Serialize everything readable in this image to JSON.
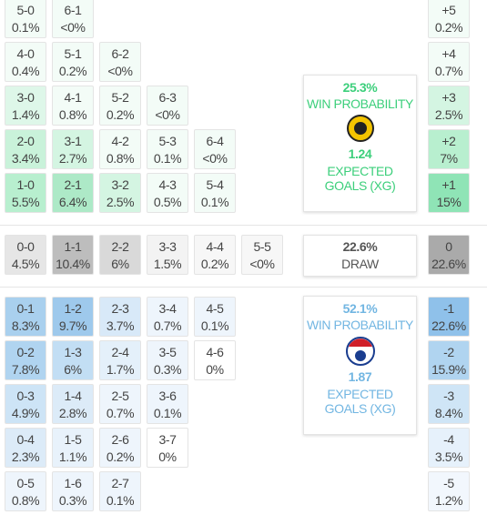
{
  "home": {
    "rows": [
      [
        {
          "score": "5-0",
          "prob": "0.1%",
          "color": "#f3fcf7"
        },
        {
          "score": "6-1",
          "prob": "<0%",
          "color": "#f3fcf7"
        }
      ],
      [
        {
          "score": "4-0",
          "prob": "0.4%",
          "color": "#f3fcf7"
        },
        {
          "score": "5-1",
          "prob": "0.2%",
          "color": "#f3fcf7"
        },
        {
          "score": "6-2",
          "prob": "<0%",
          "color": "#f3fcf7"
        }
      ],
      [
        {
          "score": "3-0",
          "prob": "1.4%",
          "color": "#def7e9"
        },
        {
          "score": "4-1",
          "prob": "0.8%",
          "color": "#f3fcf7"
        },
        {
          "score": "5-2",
          "prob": "0.2%",
          "color": "#f3fcf7"
        },
        {
          "score": "6-3",
          "prob": "<0%",
          "color": "#f3fcf7"
        }
      ],
      [
        {
          "score": "2-0",
          "prob": "3.4%",
          "color": "#c9f2da"
        },
        {
          "score": "3-1",
          "prob": "2.7%",
          "color": "#d4f5e2"
        },
        {
          "score": "4-2",
          "prob": "0.8%",
          "color": "#f3fcf7"
        },
        {
          "score": "5-3",
          "prob": "0.1%",
          "color": "#f3fcf7"
        },
        {
          "score": "6-4",
          "prob": "<0%",
          "color": "#f3fcf7"
        }
      ],
      [
        {
          "score": "1-0",
          "prob": "5.5%",
          "color": "#b8efcf"
        },
        {
          "score": "2-1",
          "prob": "6.4%",
          "color": "#ade9c7"
        },
        {
          "score": "3-2",
          "prob": "2.5%",
          "color": "#d4f5e2"
        },
        {
          "score": "4-3",
          "prob": "0.5%",
          "color": "#f3fcf7"
        },
        {
          "score": "5-4",
          "prob": "0.1%",
          "color": "#f3fcf7"
        }
      ]
    ],
    "diffs": [
      {
        "score": "+5",
        "prob": "0.2%",
        "color": "#f3fcf7"
      },
      {
        "score": "+4",
        "prob": "0.7%",
        "color": "#f3fcf7"
      },
      {
        "score": "+3",
        "prob": "2.5%",
        "color": "#d4f5e2"
      },
      {
        "score": "+2",
        "prob": "7%",
        "color": "#b8efcf"
      },
      {
        "score": "+1",
        "prob": "15%",
        "color": "#8fe4b6"
      }
    ],
    "panel": {
      "probability": "25.3%",
      "label": "WIN PROBABILITY",
      "xg": "1.24",
      "xg_label": "EXPECTED GOALS (XG)"
    }
  },
  "draw": {
    "cells": [
      {
        "score": "0-0",
        "prob": "4.5%",
        "color": "#e6e6e6"
      },
      {
        "score": "1-1",
        "prob": "10.4%",
        "color": "#bdbdbd"
      },
      {
        "score": "2-2",
        "prob": "6%",
        "color": "#d9d9d9"
      },
      {
        "score": "3-3",
        "prob": "1.5%",
        "color": "#f3f3f3"
      },
      {
        "score": "4-4",
        "prob": "0.2%",
        "color": "#f7f7f7"
      },
      {
        "score": "5-5",
        "prob": "<0%",
        "color": "#f7f7f7"
      }
    ],
    "diff": {
      "score": "0",
      "prob": "22.6%",
      "color": "#aaaaaa"
    },
    "panel": {
      "probability": "22.6%",
      "label": "DRAW"
    }
  },
  "away": {
    "rows": [
      [
        {
          "score": "0-1",
          "prob": "8.3%",
          "color": "#a9d0ee"
        },
        {
          "score": "1-2",
          "prob": "9.7%",
          "color": "#9ec9ec"
        },
        {
          "score": "2-3",
          "prob": "3.7%",
          "color": "#d8e9f8"
        },
        {
          "score": "3-4",
          "prob": "0.7%",
          "color": "#eef5fc"
        },
        {
          "score": "4-5",
          "prob": "0.1%",
          "color": "#eef5fc"
        }
      ],
      [
        {
          "score": "0-2",
          "prob": "7.8%",
          "color": "#b0d4f0"
        },
        {
          "score": "1-3",
          "prob": "6%",
          "color": "#c2def4"
        },
        {
          "score": "2-4",
          "prob": "1.7%",
          "color": "#e4f0fa"
        },
        {
          "score": "3-5",
          "prob": "0.3%",
          "color": "#eef5fc"
        },
        {
          "score": "4-6",
          "prob": "0%",
          "color": "#ffffff"
        }
      ],
      [
        {
          "score": "0-3",
          "prob": "4.9%",
          "color": "#cde4f6"
        },
        {
          "score": "1-4",
          "prob": "2.8%",
          "color": "#dcebf8"
        },
        {
          "score": "2-5",
          "prob": "0.7%",
          "color": "#eef5fc"
        },
        {
          "score": "3-6",
          "prob": "0.1%",
          "color": "#eef5fc"
        }
      ],
      [
        {
          "score": "0-4",
          "prob": "2.3%",
          "color": "#dcebf8"
        },
        {
          "score": "1-5",
          "prob": "1.1%",
          "color": "#e8f2fb"
        },
        {
          "score": "2-6",
          "prob": "0.2%",
          "color": "#eef5fc"
        },
        {
          "score": "3-7",
          "prob": "0%",
          "color": "#ffffff"
        }
      ],
      [
        {
          "score": "0-5",
          "prob": "0.8%",
          "color": "#eef5fc"
        },
        {
          "score": "1-6",
          "prob": "0.3%",
          "color": "#eef5fc"
        },
        {
          "score": "2-7",
          "prob": "0.1%",
          "color": "#eef5fc"
        }
      ]
    ],
    "diffs": [
      {
        "score": "-1",
        "prob": "22.6%",
        "color": "#8fc1ea"
      },
      {
        "score": "-2",
        "prob": "15.9%",
        "color": "#b0d4f0"
      },
      {
        "score": "-3",
        "prob": "8.4%",
        "color": "#cfe5f6"
      },
      {
        "score": "-4",
        "prob": "3.5%",
        "color": "#e6f1fb"
      },
      {
        "score": "-5",
        "prob": "1.2%",
        "color": "#f2f7fd"
      }
    ],
    "panel": {
      "probability": "52.1%",
      "label": "WIN PROBABILITY",
      "xg": "1.87",
      "xg_label": "EXPECTED GOALS (XG)"
    }
  }
}
